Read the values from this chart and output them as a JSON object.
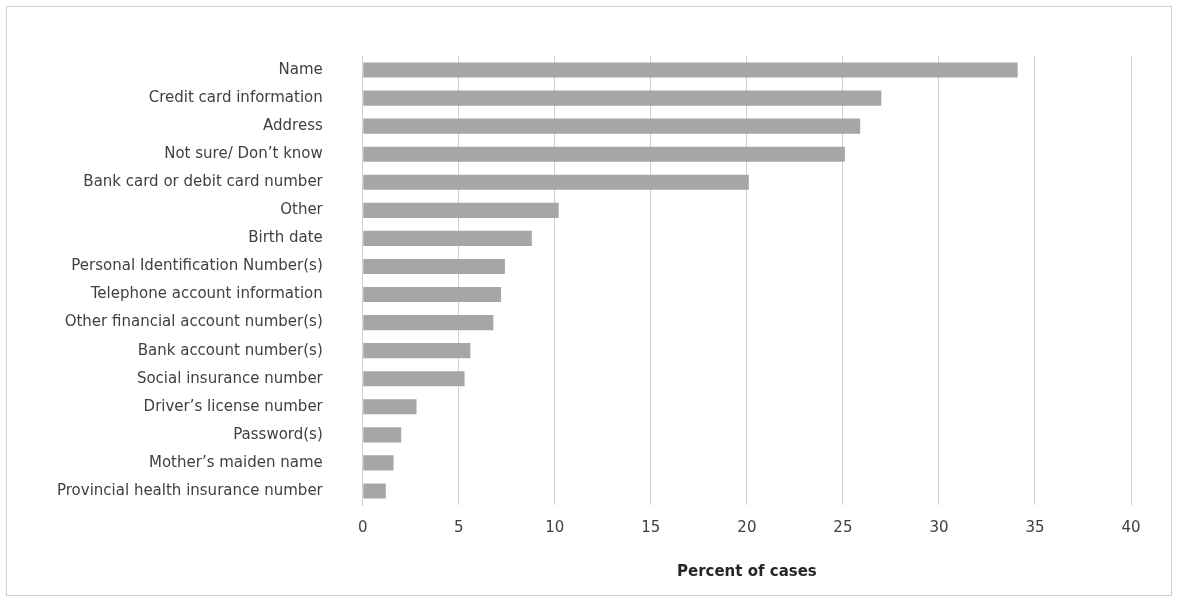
{
  "chart_data": {
    "type": "bar",
    "orientation": "horizontal",
    "xlabel": "Percent of cases",
    "categories": [
      "Name",
      "Credit card information",
      "Address",
      "Not sure/ Don’t know",
      "Bank card or debit card number",
      "Other",
      "Birth date",
      "Personal Identification Number(s)",
      "Telephone account information",
      "Other financial account number(s)",
      "Bank account number(s)",
      "Social insurance number",
      "Driver’s license number",
      "Password(s)",
      "Mother’s maiden name",
      "Provincial health insurance number"
    ],
    "values": [
      34.1,
      27.0,
      25.9,
      25.1,
      20.1,
      10.2,
      8.8,
      7.4,
      7.2,
      6.8,
      5.6,
      5.3,
      2.8,
      2.0,
      1.6,
      1.2
    ],
    "color": "#a6a6a6",
    "xlim": [
      0,
      40
    ],
    "xticks": [
      0,
      5,
      10,
      15,
      20,
      25,
      30,
      35,
      40
    ],
    "grid": "x",
    "legend": false
  }
}
